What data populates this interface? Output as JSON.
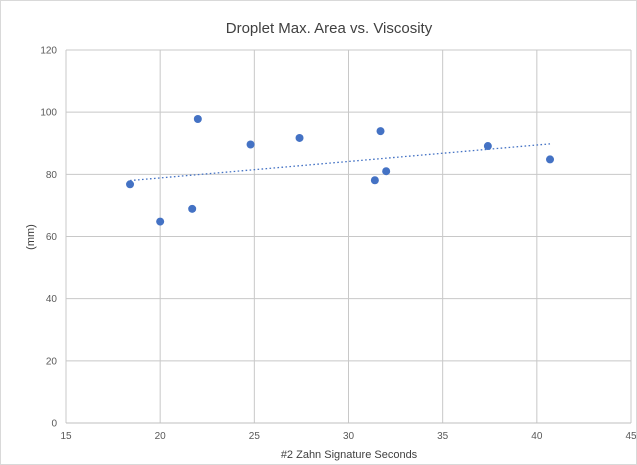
{
  "chart_data": {
    "type": "scatter",
    "title": "Droplet Max. Area vs. Viscosity",
    "xlabel": "#2 Zahn Signature Seconds",
    "ylabel": "(mm)",
    "xlim": [
      15,
      45
    ],
    "ylim": [
      0,
      120
    ],
    "xticks": [
      "15",
      "20",
      "25",
      "30",
      "35",
      "40",
      "45"
    ],
    "yticks": [
      "0",
      "20",
      "40",
      "60",
      "80",
      "100",
      "120"
    ],
    "grid": true,
    "legend": "none",
    "series": [
      {
        "color": "#4472c4",
        "points": [
          {
            "x": 18.4,
            "y": 76.8
          },
          {
            "x": 20.0,
            "y": 64.8
          },
          {
            "x": 21.7,
            "y": 68.9
          },
          {
            "x": 22.0,
            "y": 97.8
          },
          {
            "x": 24.8,
            "y": 89.6
          },
          {
            "x": 27.4,
            "y": 91.7
          },
          {
            "x": 31.4,
            "y": 78.1
          },
          {
            "x": 31.7,
            "y": 93.9
          },
          {
            "x": 32.0,
            "y": 81.0
          },
          {
            "x": 37.4,
            "y": 89.1
          },
          {
            "x": 40.7,
            "y": 84.8
          }
        ],
        "trendline": {
          "type": "linear",
          "style": "dotted",
          "from": {
            "x": 18.4,
            "y": 78.0
          },
          "to": {
            "x": 40.7,
            "y": 89.8
          }
        }
      }
    ]
  }
}
